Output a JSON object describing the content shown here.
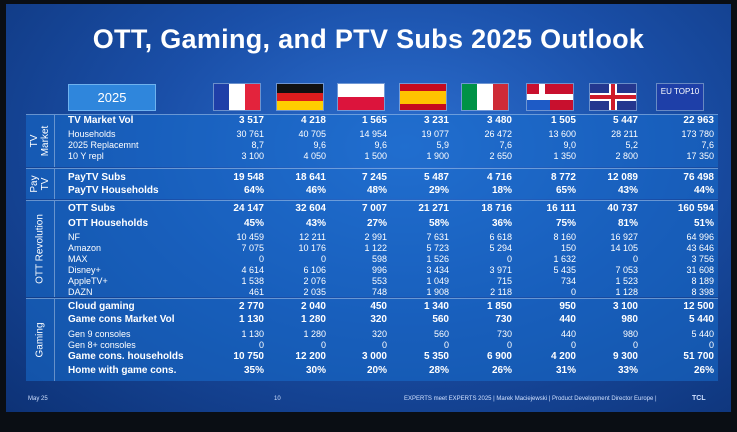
{
  "title": "OTT, Gaming, and PTV Subs 2025 Outlook",
  "year": "2025",
  "eu_flag_text": "EU TOP10",
  "sections": [
    {
      "label": "TV Market",
      "rows": [
        {
          "label": "TV Market Vol",
          "bold": true,
          "values": [
            "3 517",
            "4 218",
            "1 565",
            "3 231",
            "3 480",
            "1 505",
            "5 447",
            "22 963"
          ]
        },
        {
          "label": "Households",
          "bold": false,
          "values": [
            "30 761",
            "40 705",
            "14 954",
            "19 077",
            "26 472",
            "13 600",
            "28 211",
            "173 780"
          ]
        },
        {
          "label": "2025 Replacemnt",
          "bold": false,
          "values": [
            "8,7",
            "9,6",
            "9,6",
            "5,9",
            "7,6",
            "9,0",
            "5,2",
            "7,6"
          ]
        },
        {
          "label": "10 Y repl",
          "bold": false,
          "values": [
            "3 100",
            "4 050",
            "1 500",
            "1 900",
            "2 650",
            "1 350",
            "2 800",
            "17 350"
          ]
        }
      ]
    },
    {
      "label": "Pay TV",
      "rows": [
        {
          "label": "PayTV Subs",
          "bold": true,
          "values": [
            "19 548",
            "18 641",
            "7 245",
            "5 487",
            "4 716",
            "8 772",
            "12 089",
            "76 498"
          ]
        },
        {
          "label": "PayTV Households",
          "bold": true,
          "values": [
            "64%",
            "46%",
            "48%",
            "29%",
            "18%",
            "65%",
            "43%",
            "44%"
          ]
        }
      ]
    },
    {
      "label": "OTT Revolution",
      "rows": [
        {
          "label": "OTT Subs",
          "bold": true,
          "values": [
            "24 147",
            "32 604",
            "7 007",
            "21 271",
            "18 716",
            "16 111",
            "40 737",
            "160 594"
          ]
        },
        {
          "label": "OTT Households",
          "bold": true,
          "values": [
            "45%",
            "43%",
            "27%",
            "58%",
            "36%",
            "75%",
            "81%",
            "51%"
          ]
        },
        {
          "label": "NF",
          "bold": false,
          "values": [
            "10 459",
            "12 211",
            "2 991",
            "7 631",
            "6 618",
            "8 160",
            "16 927",
            "64 996"
          ]
        },
        {
          "label": "Amazon",
          "bold": false,
          "values": [
            "7 075",
            "10 176",
            "1 122",
            "5 723",
            "5 294",
            "150",
            "14 105",
            "43 646"
          ]
        },
        {
          "label": "MAX",
          "bold": false,
          "values": [
            "0",
            "0",
            "598",
            "1 526",
            "0",
            "1 632",
            "0",
            "3 756"
          ]
        },
        {
          "label": "Disney+",
          "bold": false,
          "values": [
            "4 614",
            "6 106",
            "996",
            "3 434",
            "3 971",
            "5 435",
            "7 053",
            "31 608"
          ]
        },
        {
          "label": "AppleTV+",
          "bold": false,
          "values": [
            "1 538",
            "2 076",
            "553",
            "1 049",
            "715",
            "734",
            "1 523",
            "8 189"
          ]
        },
        {
          "label": "DAZN",
          "bold": false,
          "values": [
            "461",
            "2 035",
            "748",
            "1 908",
            "2 118",
            "0",
            "1 128",
            "8 398"
          ]
        }
      ]
    },
    {
      "label": "Gaming",
      "rows": [
        {
          "label": "Cloud gaming",
          "bold": true,
          "values": [
            "2 770",
            "2 040",
            "450",
            "1 340",
            "1 850",
            "950",
            "3 100",
            "12 500"
          ]
        },
        {
          "label": "Game cons Market Vol",
          "bold": true,
          "values": [
            "1 130",
            "1 280",
            "320",
            "560",
            "730",
            "440",
            "980",
            "5 440"
          ]
        },
        {
          "label": "Gen 9 consoles",
          "bold": false,
          "values": [
            "1 130",
            "1 280",
            "320",
            "560",
            "730",
            "440",
            "980",
            "5 440"
          ]
        },
        {
          "label": "Gen 8+ consoles",
          "bold": false,
          "values": [
            "0",
            "0",
            "0",
            "0",
            "0",
            "0",
            "0",
            "0"
          ]
        },
        {
          "label": "Game cons. households",
          "bold": true,
          "values": [
            "10 750",
            "12 200",
            "3 000",
            "5 350",
            "6 900",
            "4 200",
            "9 300",
            "51 700"
          ]
        },
        {
          "label": "Home with game cons.",
          "bold": true,
          "values": [
            "35%",
            "30%",
            "20%",
            "28%",
            "26%",
            "31%",
            "33%",
            "26%"
          ]
        }
      ]
    }
  ],
  "footer": {
    "date": "May 25",
    "page": "10",
    "credit": "EXPERTS meet EXPERTS 2025 | Marek Maciejewski | Product Development Director Europe |",
    "brand": "TCL"
  },
  "colors": {
    "panel": "#1a4fa8",
    "row_bg": "#186ecd"
  }
}
